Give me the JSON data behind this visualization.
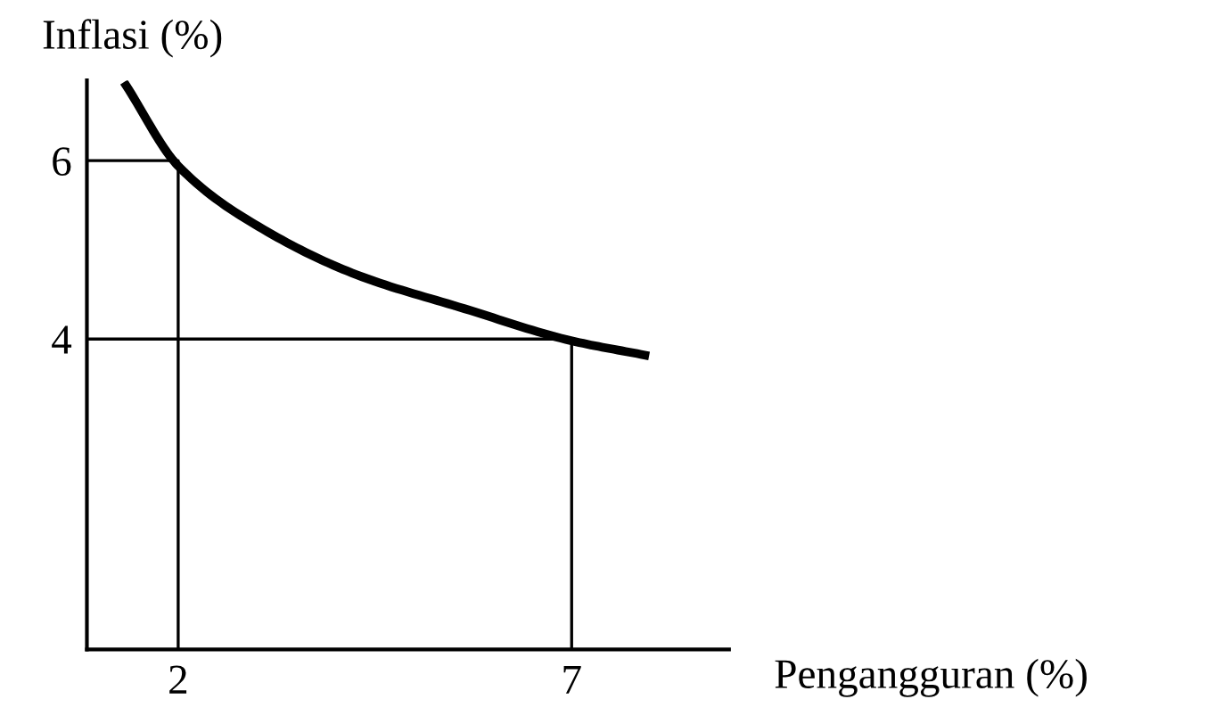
{
  "chart_data": {
    "type": "line",
    "xlabel": "Pengangguran (%)",
    "ylabel": "Inflasi (%)",
    "xlim": [
      0.84,
      9.0
    ],
    "ylim": [
      0.52,
      6.9
    ],
    "xticks": [
      2,
      7
    ],
    "yticks": [
      6,
      4
    ],
    "grid": false,
    "legend": false,
    "marker": "none",
    "line_style": "solid",
    "series": [
      {
        "color": "#000000",
        "x": [
          1.34,
          2,
          3.14,
          4.27,
          5.64,
          7,
          7.93
        ],
        "values": [
          6.84,
          5.94,
          5.2,
          4.72,
          4.34,
          3.98,
          3.82
        ]
      },
      {
        "color": "#000000",
        "x": [
          2,
          2,
          0.84
        ],
        "values": [
          0.52,
          6,
          6
        ]
      },
      {
        "color": "#000000",
        "x": [
          7,
          7,
          0.84
        ],
        "values": [
          0.52,
          4,
          4
        ]
      }
    ]
  }
}
